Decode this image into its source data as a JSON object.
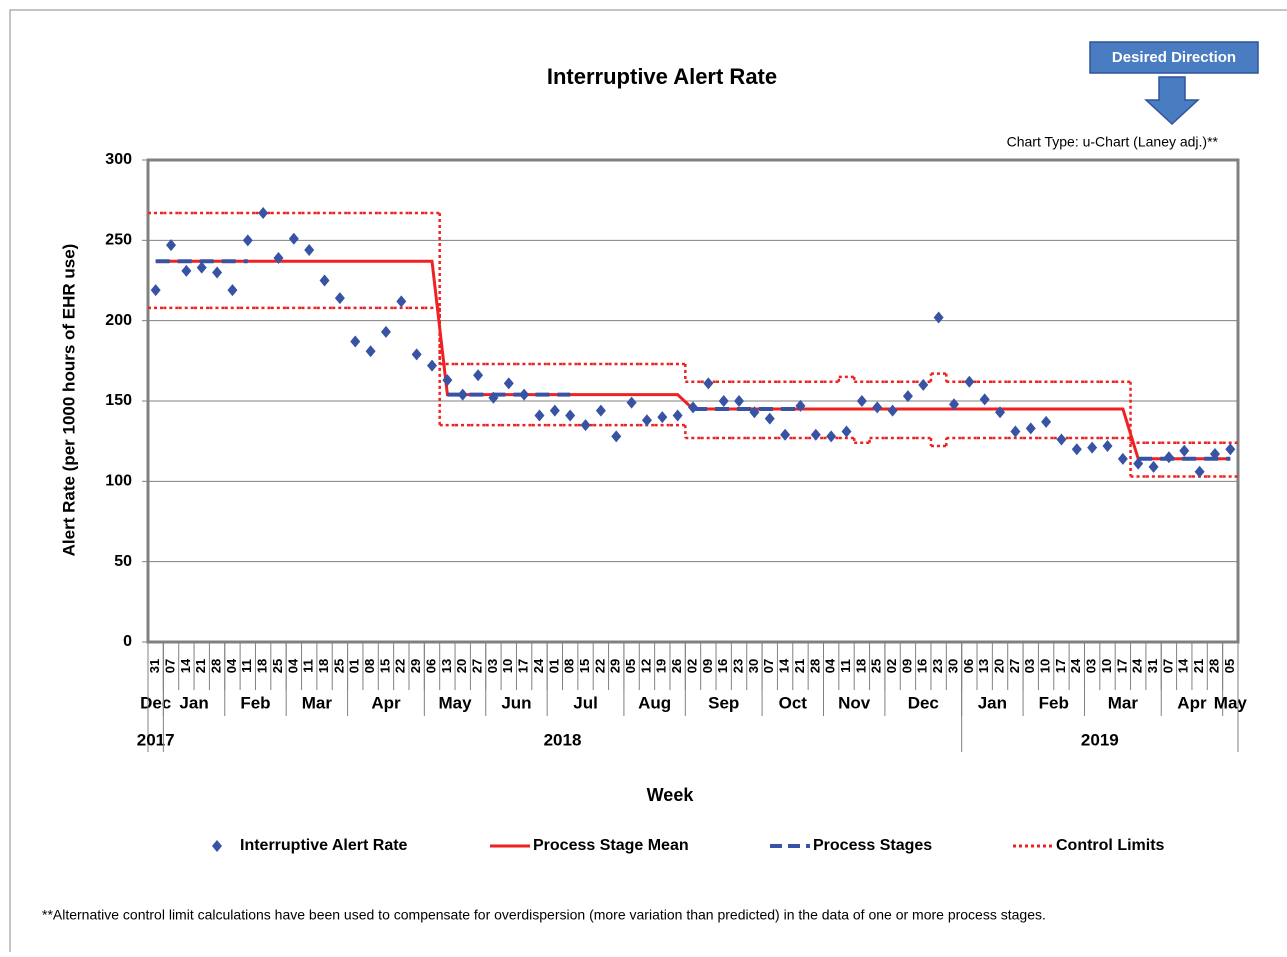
{
  "chart_data": {
    "type": "control",
    "title": "Interruptive Alert Rate",
    "subtitle": "Chart Type: u-Chart (Laney adj.)**",
    "badge": "Desired Direction",
    "x_label": "Week",
    "y_label": "Alert Rate (per 1000 hours of EHR use)",
    "footnote": "**Alternative control limit calculations have been used to compensate for overdispersion (more variation than predicted) in the data of one or more process stages.",
    "categories": [
      "31",
      "07",
      "14",
      "21",
      "28",
      "04",
      "11",
      "18",
      "25",
      "04",
      "11",
      "18",
      "25",
      "01",
      "08",
      "15",
      "22",
      "29",
      "06",
      "13",
      "20",
      "27",
      "03",
      "10",
      "17",
      "24",
      "01",
      "08",
      "15",
      "22",
      "29",
      "05",
      "12",
      "19",
      "26",
      "02",
      "09",
      "16",
      "23",
      "30",
      "07",
      "14",
      "21",
      "28",
      "04",
      "11",
      "18",
      "25",
      "02",
      "09",
      "16",
      "23",
      "30",
      "06",
      "13",
      "20",
      "27",
      "03",
      "10",
      "17",
      "24",
      "03",
      "10",
      "17",
      "24",
      "31",
      "07",
      "14",
      "21",
      "28",
      "05"
    ],
    "months": [
      {
        "label": "Dec",
        "weeks": 1
      },
      {
        "label": "Jan",
        "weeks": 4
      },
      {
        "label": "Feb",
        "weeks": 4
      },
      {
        "label": "Mar",
        "weeks": 4
      },
      {
        "label": "Apr",
        "weeks": 5
      },
      {
        "label": "May",
        "weeks": 4
      },
      {
        "label": "Jun",
        "weeks": 4
      },
      {
        "label": "Jul",
        "weeks": 5
      },
      {
        "label": "Aug",
        "weeks": 4
      },
      {
        "label": "Sep",
        "weeks": 5
      },
      {
        "label": "Oct",
        "weeks": 4
      },
      {
        "label": "Nov",
        "weeks": 4
      },
      {
        "label": "Dec",
        "weeks": 5
      },
      {
        "label": "Jan",
        "weeks": 4
      },
      {
        "label": "Feb",
        "weeks": 4
      },
      {
        "label": "Mar",
        "weeks": 5
      },
      {
        "label": "Apr",
        "weeks": 4
      },
      {
        "label": "May",
        "weeks": 1
      }
    ],
    "years": [
      {
        "label": "2017",
        "weeks": 1
      },
      {
        "label": "2018",
        "weeks": 52
      },
      {
        "label": "2019",
        "weeks": 18
      }
    ],
    "ylim": [
      0,
      300
    ],
    "yticks": [
      0,
      50,
      100,
      150,
      200,
      250,
      300
    ],
    "grid": true,
    "series": [
      {
        "name": "Interruptive Alert Rate",
        "color": "#3853a4",
        "marker": "diamond",
        "values": [
          219,
          247,
          231,
          233,
          230,
          219,
          250,
          267,
          239,
          251,
          244,
          225,
          214,
          187,
          181,
          193,
          212,
          179,
          172,
          163,
          154,
          166,
          152,
          161,
          154,
          141,
          144,
          141,
          135,
          144,
          128,
          149,
          138,
          140,
          141,
          146,
          161,
          150,
          150,
          143,
          139,
          129,
          147,
          129,
          128,
          131,
          150,
          146,
          144,
          153,
          160,
          202,
          148,
          162,
          151,
          143,
          131,
          133,
          137,
          126,
          120,
          121,
          122,
          114,
          111,
          109,
          115,
          119,
          106,
          117,
          120
        ]
      },
      {
        "name": "Process Stage Mean",
        "color": "#ee2222",
        "style": "solid",
        "values": [
          237,
          237,
          237,
          237,
          237,
          237,
          237,
          237,
          237,
          237,
          237,
          237,
          237,
          237,
          237,
          237,
          237,
          237,
          237,
          154,
          154,
          154,
          154,
          154,
          154,
          154,
          154,
          154,
          154,
          154,
          154,
          154,
          154,
          154,
          154,
          145,
          145,
          145,
          145,
          145,
          145,
          145,
          145,
          145,
          145,
          145,
          145,
          145,
          145,
          145,
          145,
          145,
          145,
          145,
          145,
          145,
          145,
          145,
          145,
          145,
          145,
          145,
          145,
          145,
          114,
          114,
          114,
          114,
          114,
          114,
          114
        ]
      },
      {
        "name": "Process Stages",
        "color": "#3853a4",
        "style": "dashed",
        "values": [
          237,
          237,
          237,
          237,
          237,
          237,
          237,
          null,
          null,
          null,
          null,
          null,
          null,
          null,
          null,
          null,
          null,
          null,
          null,
          154,
          154,
          154,
          154,
          154,
          154,
          154,
          154,
          154,
          null,
          null,
          null,
          null,
          null,
          null,
          null,
          145,
          145,
          145,
          145,
          145,
          145,
          145,
          145,
          null,
          null,
          null,
          null,
          null,
          null,
          null,
          null,
          null,
          null,
          null,
          null,
          null,
          null,
          null,
          null,
          null,
          null,
          null,
          null,
          null,
          114,
          114,
          114,
          114,
          114,
          114,
          114
        ]
      },
      {
        "name": "Control Limits",
        "color": "#ee2222",
        "style": "dotted",
        "upper": [
          267,
          267,
          267,
          267,
          267,
          267,
          267,
          267,
          267,
          267,
          267,
          267,
          267,
          267,
          267,
          267,
          267,
          267,
          267,
          173,
          173,
          173,
          173,
          173,
          173,
          173,
          173,
          173,
          173,
          173,
          173,
          173,
          173,
          173,
          173,
          162,
          162,
          162,
          162,
          162,
          162,
          162,
          162,
          162,
          162,
          165,
          162,
          162,
          162,
          162,
          162,
          167,
          162,
          162,
          162,
          162,
          162,
          162,
          162,
          162,
          162,
          162,
          162,
          162,
          124,
          124,
          124,
          124,
          124,
          124,
          124
        ],
        "lower": [
          208,
          208,
          208,
          208,
          208,
          208,
          208,
          208,
          208,
          208,
          208,
          208,
          208,
          208,
          208,
          208,
          208,
          208,
          208,
          135,
          135,
          135,
          135,
          135,
          135,
          135,
          135,
          135,
          135,
          135,
          135,
          135,
          135,
          135,
          135,
          127,
          127,
          127,
          127,
          127,
          127,
          127,
          127,
          127,
          127,
          127,
          124,
          127,
          127,
          127,
          127,
          122,
          127,
          127,
          127,
          127,
          127,
          127,
          127,
          127,
          127,
          127,
          127,
          127,
          103,
          103,
          103,
          103,
          103,
          103,
          103
        ]
      }
    ]
  }
}
